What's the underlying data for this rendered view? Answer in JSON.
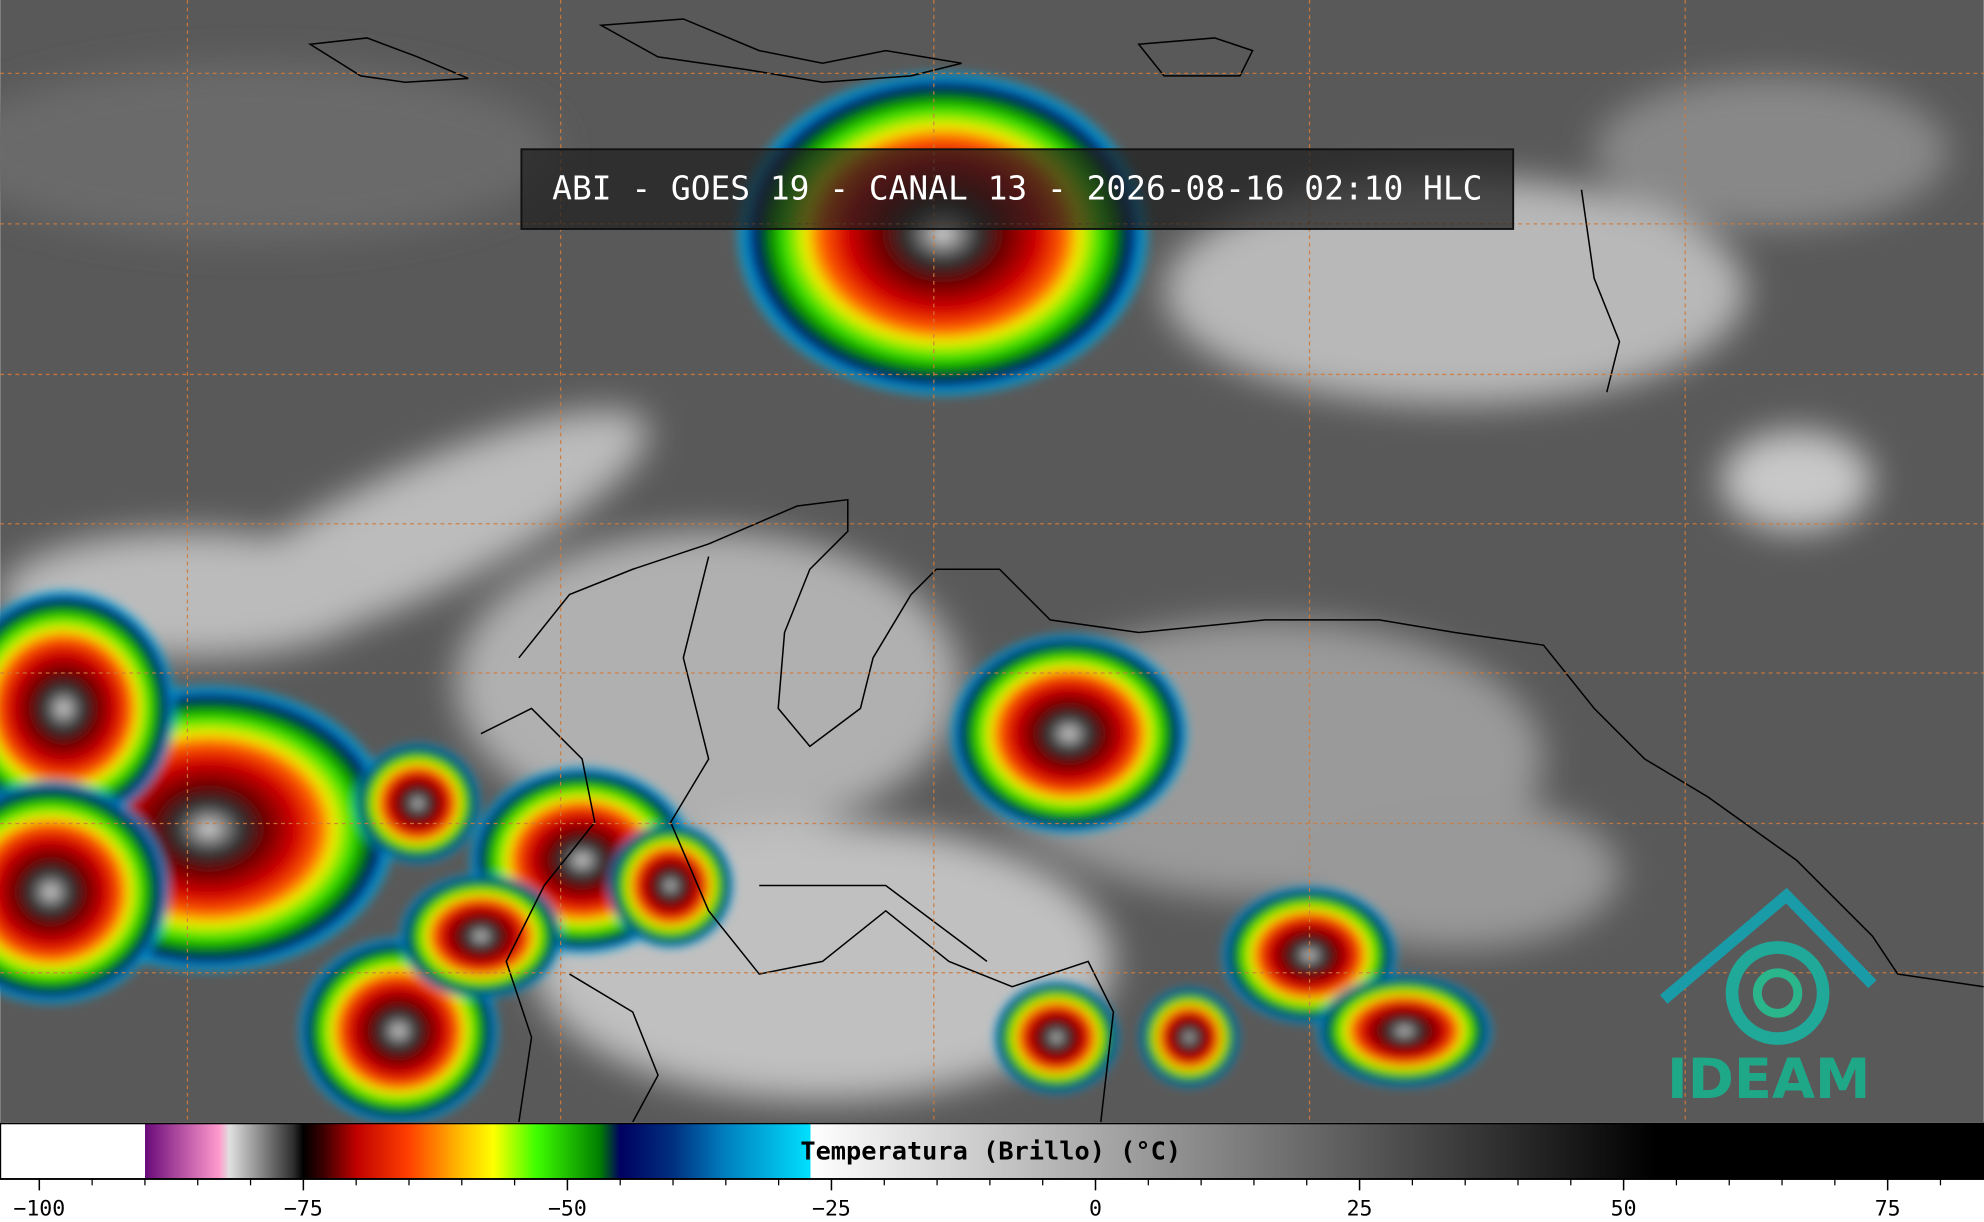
{
  "header": {
    "title": "ABI - GOES 19 - CANAL 13 - 2026-08-16 02:10 HLC"
  },
  "logo": {
    "text": "IDEAM"
  },
  "colorbar": {
    "label": "Temperatura (Brillo) (°C)",
    "lim": [
      -103.7,
      84.1
    ],
    "ticks": [
      {
        "value": -100,
        "label": "−100"
      },
      {
        "value": -75,
        "label": "−75"
      },
      {
        "value": -50,
        "label": "−50"
      },
      {
        "value": -25,
        "label": "−25"
      },
      0,
      25,
      50,
      75
    ],
    "minor_ticks": [
      -95,
      -90,
      -85,
      -80,
      -70,
      -65,
      -60,
      -55,
      -45,
      -40,
      -35,
      -30,
      -20,
      -15,
      -10,
      -5,
      5,
      10,
      15,
      20,
      30,
      35,
      40,
      45,
      55,
      60,
      65,
      70,
      80
    ],
    "colormap": [
      {
        "value": -103.7,
        "color": "#ffffff"
      },
      {
        "value": -90,
        "color": "#ffffff"
      },
      {
        "value": -90,
        "color": "#6a0a7a"
      },
      {
        "value": -83,
        "color": "#ff99cc"
      },
      {
        "value": -82,
        "color": "#e0e0e0"
      },
      {
        "value": -76,
        "color": "#303030"
      },
      {
        "value": -75,
        "color": "#000000"
      },
      {
        "value": -73,
        "color": "#400000"
      },
      {
        "value": -70,
        "color": "#c00000"
      },
      {
        "value": -65,
        "color": "#ff4000"
      },
      {
        "value": -60,
        "color": "#ffc000"
      },
      {
        "value": -57,
        "color": "#ffff00"
      },
      {
        "value": -53,
        "color": "#40ff00"
      },
      {
        "value": -47,
        "color": "#008000"
      },
      {
        "value": -45,
        "color": "#000060"
      },
      {
        "value": -40,
        "color": "#003080"
      },
      {
        "value": -35,
        "color": "#0080c0"
      },
      {
        "value": -27,
        "color": "#00e0ff"
      },
      {
        "value": -27,
        "color": "#ffffff"
      },
      {
        "value": 53,
        "color": "#000000"
      },
      {
        "value": 84.1,
        "color": "#000000"
      }
    ]
  }
}
